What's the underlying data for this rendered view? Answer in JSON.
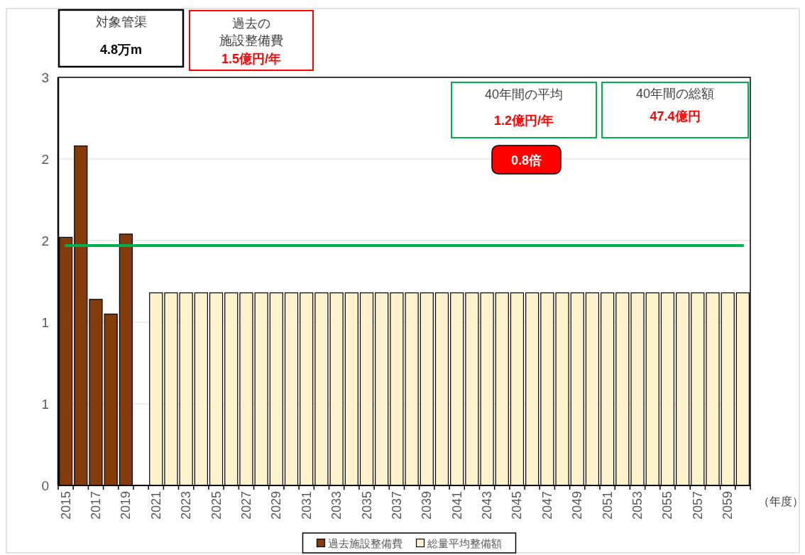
{
  "chart_data": {
    "type": "bar",
    "stacked": true,
    "categories": [
      "2015",
      null,
      "2017",
      null,
      "2019",
      null,
      "2021",
      null,
      "2023",
      null,
      "2025",
      null,
      "2027",
      null,
      "2029",
      null,
      "2031",
      null,
      "2033",
      null,
      "2035",
      null,
      "2037",
      null,
      "2039",
      null,
      "2041",
      null,
      "2043",
      null,
      "2045",
      null,
      "2047",
      null,
      "2049",
      null,
      "2051",
      null,
      "2053",
      null,
      "2055",
      null,
      "2057",
      null,
      "2059",
      null
    ],
    "series": [
      {
        "name": "過去施設整備費",
        "color": "#843c0c",
        "values": [
          1.52,
          2.08,
          1.14,
          1.05,
          1.54,
          null,
          null,
          null,
          null,
          null,
          null,
          null,
          null,
          null,
          null,
          null,
          null,
          null,
          null,
          null,
          null,
          null,
          null,
          null,
          null,
          null,
          null,
          null,
          null,
          null,
          null,
          null,
          null,
          null,
          null,
          null,
          null,
          null,
          null,
          null,
          null,
          null,
          null,
          null,
          null,
          null
        ]
      },
      {
        "name": "総量平均整備額",
        "color": "#fff2cc",
        "values": [
          null,
          null,
          null,
          null,
          null,
          null,
          1.18,
          1.18,
          1.18,
          1.18,
          1.18,
          1.18,
          1.18,
          1.18,
          1.18,
          1.18,
          1.18,
          1.18,
          1.18,
          1.18,
          1.18,
          1.18,
          1.18,
          1.18,
          1.18,
          1.18,
          1.18,
          1.18,
          1.18,
          1.18,
          1.18,
          1.18,
          1.18,
          1.18,
          1.18,
          1.18,
          1.18,
          1.18,
          1.18,
          1.18,
          1.18,
          1.18,
          1.18,
          1.18,
          1.18,
          1.18
        ]
      },
      {
        "type": "line",
        "color": "#00b050",
        "values": [
          1.47,
          1.47,
          1.47,
          1.47,
          1.47,
          1.47,
          1.47,
          1.47,
          1.47,
          1.47,
          1.47,
          1.47,
          1.47,
          1.47,
          1.47,
          1.47,
          1.47,
          1.47,
          1.47,
          1.47,
          1.47,
          1.47,
          1.47,
          1.47,
          1.47,
          1.47,
          1.47,
          1.47,
          1.47,
          1.47,
          1.47,
          1.47,
          1.47,
          1.47,
          1.47,
          1.47,
          1.47,
          1.47,
          1.47,
          1.47,
          1.47,
          1.47,
          1.47,
          1.47,
          1.47,
          1.47
        ]
      }
    ],
    "xlabel": "（年度）",
    "ylim": [
      0,
      2.5
    ],
    "yticks": [
      0,
      {
        "value": 0.5,
        "label": "1"
      },
      1,
      {
        "value": 1.5,
        "label": "2"
      },
      2,
      {
        "value": 2.5,
        "label": "3"
      }
    ],
    "grid": "y",
    "legend": "bottom",
    "annotations": [
      "対象管渠",
      "4.8万m",
      "過去の",
      "施設整備費",
      "1.5億円/年",
      "40年間の平均",
      "1.2億円/年",
      "40年間の総額",
      "47.4億円",
      "0.8倍"
    ]
  }
}
